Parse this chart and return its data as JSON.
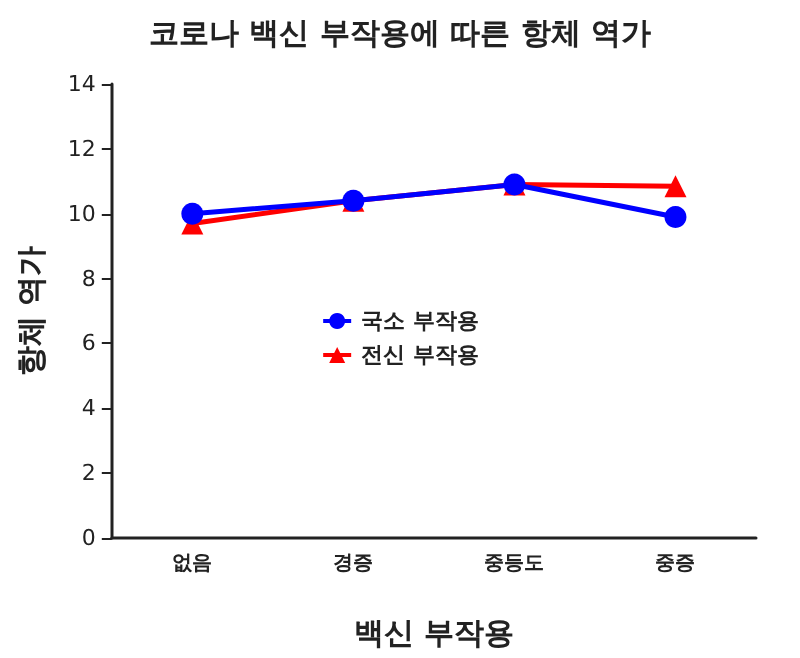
{
  "chart_data": {
    "type": "line",
    "title": "코로나 백신 부작용에 따른 항체 역가",
    "xlabel": "백신 부작용",
    "ylabel": "항체 역가",
    "categories": [
      "없음",
      "경증",
      "중등도",
      "중증"
    ],
    "series": [
      {
        "name": "국소 부작용",
        "color": "#0000ff",
        "marker": "circle",
        "values": [
          10.0,
          10.4,
          10.9,
          9.9
        ]
      },
      {
        "name": "전신 부작용",
        "color": "#ff0000",
        "marker": "triangle",
        "values": [
          9.7,
          10.4,
          10.9,
          10.85
        ]
      }
    ],
    "ylim": [
      0,
      14
    ],
    "yticks": [
      0,
      2,
      4,
      6,
      8,
      10,
      12,
      14
    ],
    "grid": false,
    "legend": "center"
  }
}
